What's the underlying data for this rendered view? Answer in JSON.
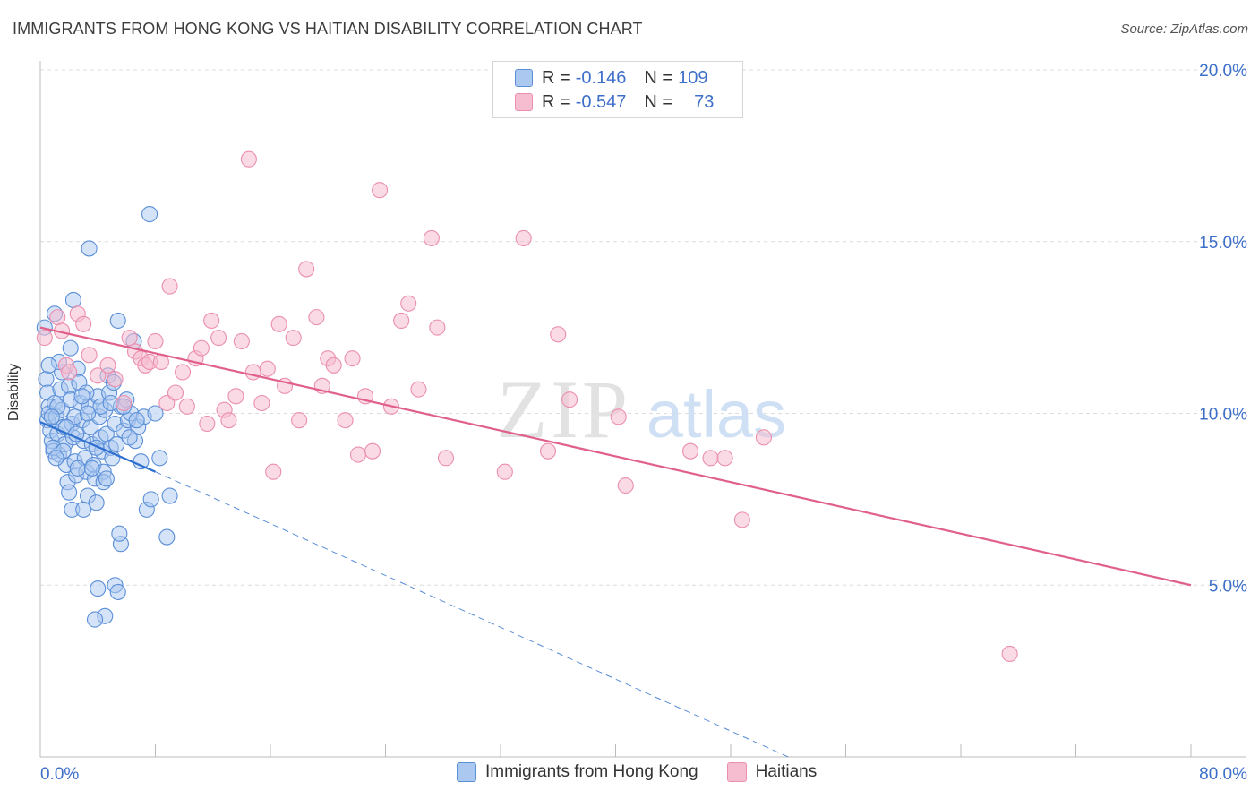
{
  "header": {
    "title": "IMMIGRANTS FROM HONG KONG VS HAITIAN DISABILITY CORRELATION CHART",
    "source": "Source: ZipAtlas.com"
  },
  "watermark": {
    "zip": "ZIP",
    "atlas": "atlas"
  },
  "legend_top": {
    "rows": [
      {
        "r_label": "R =",
        "r_value": "-0.146",
        "n_label": "N =",
        "n_value": "109"
      },
      {
        "r_label": "R =",
        "r_value": "-0.547",
        "n_label": "N =",
        "n_value": "73"
      }
    ]
  },
  "legend_bottom": {
    "items": [
      "Immigrants from Hong Kong",
      "Haitians"
    ]
  },
  "chart_data": {
    "type": "scatter",
    "title": "IMMIGRANTS FROM HONG KONG VS HAITIAN DISABILITY CORRELATION CHART",
    "xlabel": "",
    "ylabel": "Disability",
    "xlim": [
      0,
      80
    ],
    "ylim": [
      0,
      20.0
    ],
    "x_tick_labels": [
      "0.0%",
      "80.0%"
    ],
    "y_tick_labels": [
      "5.0%",
      "10.0%",
      "15.0%",
      "20.0%"
    ],
    "y_ticks": [
      5,
      10,
      15,
      20
    ],
    "grid": "horizontal dashed",
    "legend_position": "top-center",
    "colors": {
      "series_0_fill": "#aac8f0",
      "series_0_stroke": "#5b8fd8",
      "series_0_line": "#2f6fce",
      "series_1_fill": "#f6bcd0",
      "series_1_stroke": "#eb8fae",
      "series_1_line": "#e0608a",
      "axis_label": "#3d6fc9"
    },
    "series": [
      {
        "name": "Immigrants from Hong Kong",
        "r": -0.146,
        "n": 109,
        "trend": {
          "x": [
            0,
            8
          ],
          "y": [
            9.75,
            8.3
          ],
          "extrapolate_to": [
            52,
            0.0
          ]
        },
        "points": [
          [
            0.3,
            12.5
          ],
          [
            0.4,
            11.0
          ],
          [
            0.5,
            10.6
          ],
          [
            0.6,
            10.2
          ],
          [
            0.5,
            9.8
          ],
          [
            0.7,
            9.5
          ],
          [
            0.8,
            9.2
          ],
          [
            0.9,
            8.9
          ],
          [
            0.6,
            10.0
          ],
          [
            1.0,
            10.3
          ],
          [
            1.1,
            9.9
          ],
          [
            1.2,
            9.4
          ],
          [
            1.3,
            8.8
          ],
          [
            1.0,
            12.9
          ],
          [
            1.4,
            10.7
          ],
          [
            1.5,
            10.1
          ],
          [
            1.6,
            9.6
          ],
          [
            1.7,
            9.1
          ],
          [
            1.8,
            8.5
          ],
          [
            1.9,
            8.0
          ],
          [
            2.0,
            10.8
          ],
          [
            2.1,
            10.4
          ],
          [
            2.2,
            9.7
          ],
          [
            2.3,
            9.3
          ],
          [
            2.4,
            8.6
          ],
          [
            2.5,
            8.2
          ],
          [
            2.0,
            7.7
          ],
          [
            2.2,
            7.2
          ],
          [
            2.6,
            11.3
          ],
          [
            2.7,
            10.9
          ],
          [
            2.8,
            10.3
          ],
          [
            2.9,
            9.8
          ],
          [
            3.0,
            9.2
          ],
          [
            3.1,
            8.7
          ],
          [
            3.2,
            8.3
          ],
          [
            3.3,
            7.6
          ],
          [
            3.0,
            7.2
          ],
          [
            2.3,
            13.3
          ],
          [
            2.4,
            9.9
          ],
          [
            3.4,
            10.2
          ],
          [
            3.5,
            9.6
          ],
          [
            3.6,
            9.1
          ],
          [
            3.7,
            8.5
          ],
          [
            3.8,
            8.1
          ],
          [
            3.9,
            7.4
          ],
          [
            3.4,
            14.8
          ],
          [
            4.0,
            10.5
          ],
          [
            4.1,
            9.9
          ],
          [
            4.2,
            9.3
          ],
          [
            4.3,
            8.9
          ],
          [
            4.4,
            8.3
          ],
          [
            4.5,
            10.1
          ],
          [
            4.6,
            9.4
          ],
          [
            4.7,
            11.1
          ],
          [
            4.8,
            10.6
          ],
          [
            4.9,
            9.0
          ],
          [
            5.0,
            8.7
          ],
          [
            5.1,
            10.9
          ],
          [
            5.2,
            9.7
          ],
          [
            5.3,
            9.1
          ],
          [
            5.4,
            12.7
          ],
          [
            5.6,
            10.2
          ],
          [
            5.8,
            9.5
          ],
          [
            6.0,
            10.4
          ],
          [
            6.1,
            9.8
          ],
          [
            6.3,
            10.0
          ],
          [
            6.5,
            12.1
          ],
          [
            6.6,
            9.2
          ],
          [
            6.8,
            9.6
          ],
          [
            7.0,
            8.6
          ],
          [
            7.2,
            9.9
          ],
          [
            7.4,
            7.2
          ],
          [
            7.6,
            15.8
          ],
          [
            7.7,
            7.5
          ],
          [
            8.0,
            10.0
          ],
          [
            8.3,
            8.7
          ],
          [
            8.8,
            6.4
          ],
          [
            9.0,
            7.6
          ],
          [
            5.6,
            6.2
          ],
          [
            5.5,
            6.5
          ],
          [
            5.2,
            5.0
          ],
          [
            5.4,
            4.8
          ],
          [
            4.5,
            4.1
          ],
          [
            4.0,
            4.9
          ],
          [
            3.8,
            4.0
          ],
          [
            1.2,
            10.2
          ],
          [
            1.5,
            11.2
          ],
          [
            0.9,
            9.0
          ],
          [
            2.6,
            8.4
          ],
          [
            3.2,
            10.6
          ],
          [
            4.4,
            8.0
          ],
          [
            5.8,
            10.2
          ],
          [
            6.7,
            9.8
          ],
          [
            1.8,
            9.6
          ],
          [
            2.9,
            10.5
          ],
          [
            3.6,
            8.4
          ],
          [
            4.2,
            10.2
          ],
          [
            0.8,
            9.9
          ],
          [
            1.6,
            8.9
          ],
          [
            2.5,
            9.4
          ],
          [
            3.9,
            9.0
          ],
          [
            4.9,
            10.3
          ],
          [
            1.3,
            11.5
          ],
          [
            2.1,
            11.9
          ],
          [
            3.3,
            10.0
          ],
          [
            6.2,
            9.3
          ],
          [
            1.1,
            8.7
          ],
          [
            0.6,
            11.4
          ],
          [
            4.6,
            8.1
          ]
        ]
      },
      {
        "name": "Haitians",
        "r": -0.547,
        "n": 73,
        "trend": {
          "x": [
            0,
            80
          ],
          "y": [
            12.5,
            5.0
          ]
        },
        "points": [
          [
            0.3,
            12.2
          ],
          [
            1.2,
            12.8
          ],
          [
            1.5,
            12.4
          ],
          [
            1.8,
            11.4
          ],
          [
            2.0,
            11.2
          ],
          [
            2.6,
            12.9
          ],
          [
            3.0,
            12.6
          ],
          [
            3.4,
            11.7
          ],
          [
            4.0,
            11.1
          ],
          [
            4.7,
            11.4
          ],
          [
            5.2,
            11.0
          ],
          [
            5.8,
            10.3
          ],
          [
            6.2,
            12.2
          ],
          [
            6.6,
            11.8
          ],
          [
            7.0,
            11.6
          ],
          [
            7.3,
            11.4
          ],
          [
            7.6,
            11.5
          ],
          [
            8.0,
            12.1
          ],
          [
            8.4,
            11.5
          ],
          [
            8.8,
            10.3
          ],
          [
            9.0,
            13.7
          ],
          [
            9.4,
            10.6
          ],
          [
            9.9,
            11.2
          ],
          [
            10.2,
            10.2
          ],
          [
            10.8,
            11.6
          ],
          [
            11.2,
            11.9
          ],
          [
            11.6,
            9.7
          ],
          [
            11.9,
            12.7
          ],
          [
            12.4,
            12.2
          ],
          [
            12.8,
            10.1
          ],
          [
            13.1,
            9.8
          ],
          [
            13.6,
            10.5
          ],
          [
            14.0,
            12.1
          ],
          [
            14.5,
            17.4
          ],
          [
            14.8,
            11.2
          ],
          [
            15.4,
            10.3
          ],
          [
            15.8,
            11.3
          ],
          [
            16.2,
            8.3
          ],
          [
            16.6,
            12.6
          ],
          [
            17.0,
            10.8
          ],
          [
            17.6,
            12.2
          ],
          [
            18.0,
            9.8
          ],
          [
            18.5,
            14.2
          ],
          [
            19.2,
            12.8
          ],
          [
            19.6,
            10.8
          ],
          [
            20.0,
            11.6
          ],
          [
            20.4,
            11.4
          ],
          [
            21.2,
            9.8
          ],
          [
            21.7,
            11.6
          ],
          [
            22.1,
            8.8
          ],
          [
            22.6,
            10.5
          ],
          [
            23.1,
            8.9
          ],
          [
            23.6,
            16.5
          ],
          [
            24.4,
            10.2
          ],
          [
            25.1,
            12.7
          ],
          [
            25.6,
            13.2
          ],
          [
            26.3,
            10.7
          ],
          [
            27.2,
            15.1
          ],
          [
            27.6,
            12.5
          ],
          [
            28.2,
            8.7
          ],
          [
            32.3,
            8.3
          ],
          [
            33.6,
            15.1
          ],
          [
            35.3,
            8.9
          ],
          [
            36.0,
            12.3
          ],
          [
            36.8,
            10.4
          ],
          [
            40.2,
            9.9
          ],
          [
            40.7,
            7.9
          ],
          [
            45.2,
            8.9
          ],
          [
            46.6,
            8.7
          ],
          [
            47.6,
            8.7
          ],
          [
            48.8,
            6.9
          ],
          [
            50.3,
            9.3
          ],
          [
            67.4,
            3.0
          ]
        ]
      }
    ]
  }
}
